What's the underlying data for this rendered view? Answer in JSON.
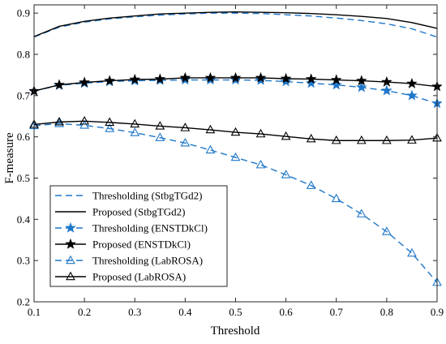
{
  "chart_data": {
    "type": "line",
    "title": "",
    "xlabel": "Threshold",
    "ylabel": "F-measure",
    "xlim": [
      0.1,
      0.9
    ],
    "ylim": [
      0.2,
      0.92
    ],
    "xticks": [
      0.1,
      0.2,
      0.3,
      0.4,
      0.5,
      0.6,
      0.7,
      0.8,
      0.9
    ],
    "xtick_labels": [
      "0.1",
      "0.2",
      "0.3",
      "0.4",
      "0.5",
      "0.6",
      "0.7",
      "0.8",
      "0.9"
    ],
    "yticks": [
      0.2,
      0.3,
      0.4,
      0.5,
      0.6,
      0.7,
      0.8,
      0.9
    ],
    "ytick_labels": [
      "0.2",
      "0.3",
      "0.4",
      "0.5",
      "0.6",
      "0.7",
      "0.8",
      "0.9"
    ],
    "grid": false,
    "legend_position": "bottom-left",
    "x": [
      0.1,
      0.15,
      0.2,
      0.25,
      0.3,
      0.35,
      0.4,
      0.45,
      0.5,
      0.55,
      0.6,
      0.65,
      0.7,
      0.75,
      0.8,
      0.85,
      0.9
    ],
    "series": [
      {
        "name": "Thresholding (StbgTGd2)",
        "color": "#1f77c9",
        "dash": "dashed",
        "marker": "none",
        "values": [
          0.842,
          0.866,
          0.878,
          0.886,
          0.891,
          0.895,
          0.898,
          0.9,
          0.9,
          0.899,
          0.896,
          0.893,
          0.888,
          0.882,
          0.874,
          0.862,
          0.842
        ]
      },
      {
        "name": "Proposed (StbgTGd2)",
        "color": "#000000",
        "dash": "solid",
        "marker": "none",
        "values": [
          0.843,
          0.868,
          0.88,
          0.888,
          0.893,
          0.898,
          0.9,
          0.902,
          0.903,
          0.902,
          0.901,
          0.899,
          0.896,
          0.892,
          0.887,
          0.877,
          0.863
        ]
      },
      {
        "name": "Thresholding (ENSTDkCl)",
        "color": "#1f77c9",
        "dash": "dashed",
        "marker": "star",
        "values": [
          0.711,
          0.725,
          0.73,
          0.734,
          0.736,
          0.737,
          0.738,
          0.738,
          0.738,
          0.737,
          0.734,
          0.73,
          0.726,
          0.72,
          0.712,
          0.7,
          0.681
        ]
      },
      {
        "name": "Proposed (ENSTDkCl)",
        "color": "#000000",
        "dash": "solid",
        "marker": "star",
        "values": [
          0.711,
          0.726,
          0.732,
          0.736,
          0.739,
          0.74,
          0.743,
          0.743,
          0.743,
          0.743,
          0.741,
          0.74,
          0.738,
          0.736,
          0.733,
          0.729,
          0.722
        ]
      },
      {
        "name": "Thresholding (LabROSA)",
        "color": "#1f77c9",
        "dash": "dashed",
        "marker": "triangle",
        "values": [
          0.627,
          0.632,
          0.628,
          0.62,
          0.61,
          0.598,
          0.585,
          0.568,
          0.55,
          0.532,
          0.508,
          0.482,
          0.45,
          0.413,
          0.37,
          0.318,
          0.247
        ]
      },
      {
        "name": "Proposed (LabROSA)",
        "color": "#000000",
        "dash": "solid",
        "marker": "triangle",
        "values": [
          0.63,
          0.636,
          0.638,
          0.635,
          0.631,
          0.626,
          0.622,
          0.617,
          0.611,
          0.607,
          0.601,
          0.595,
          0.591,
          0.591,
          0.591,
          0.592,
          0.597
        ]
      }
    ]
  }
}
